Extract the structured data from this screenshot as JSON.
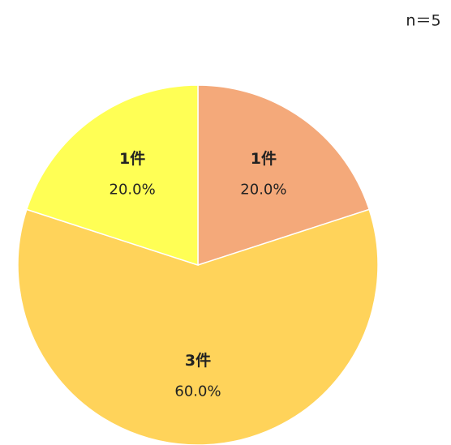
{
  "chart_data": {
    "type": "pie",
    "annotation": "n＝5",
    "values": [
      20,
      60,
      20
    ],
    "value_labels": [
      "20.0%",
      "60.0%",
      "20.0%"
    ],
    "count_labels": [
      "1件",
      "3件",
      "1件"
    ],
    "colors": [
      "#f4a97a",
      "#ffd35a",
      "#ffff55"
    ]
  }
}
